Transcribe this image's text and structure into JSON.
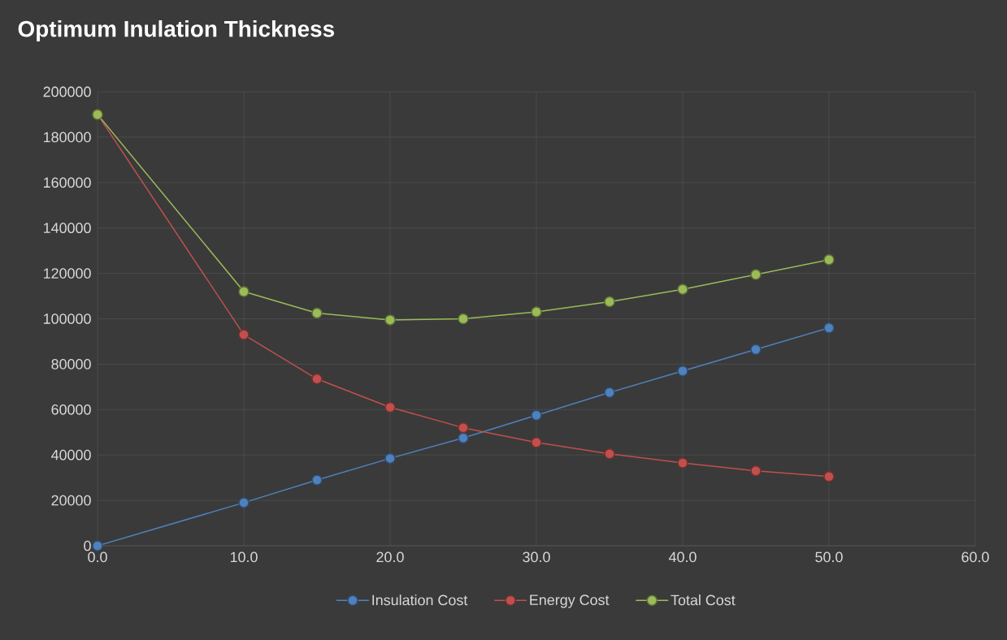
{
  "chart_data": {
    "type": "line",
    "title": "Optimum Inulation Thickness",
    "x": [
      0,
      10,
      15,
      20,
      25,
      30,
      35,
      40,
      45,
      50
    ],
    "series": [
      {
        "name": "Insulation Cost",
        "color": "#4f81bd",
        "values": [
          0,
          19000,
          29000,
          38500,
          47500,
          57500,
          67500,
          77000,
          86500,
          96000
        ]
      },
      {
        "name": "Energy Cost",
        "color": "#c0504d",
        "values": [
          190000,
          93000,
          73500,
          61000,
          52000,
          45500,
          40500,
          36500,
          33000,
          30500
        ]
      },
      {
        "name": "Total Cost",
        "color": "#9bbb59",
        "values": [
          190000,
          112000,
          102500,
          99500,
          100000,
          103000,
          107500,
          113000,
          119500,
          126000
        ]
      }
    ],
    "xlim": [
      0,
      60
    ],
    "xticks": [
      {
        "value": 0,
        "label": "0.0"
      },
      {
        "value": 10,
        "label": "10.0"
      },
      {
        "value": 20,
        "label": "20.0"
      },
      {
        "value": 30,
        "label": "30.0"
      },
      {
        "value": 40,
        "label": "40.0"
      },
      {
        "value": 50,
        "label": "50.0"
      },
      {
        "value": 60,
        "label": "60.0"
      }
    ],
    "ylim": [
      0,
      200000
    ],
    "yticks": [
      0,
      20000,
      40000,
      60000,
      80000,
      100000,
      120000,
      140000,
      160000,
      180000,
      200000
    ],
    "grid": true,
    "legend": "bottom",
    "marker": "circle",
    "line_style": "solid"
  }
}
